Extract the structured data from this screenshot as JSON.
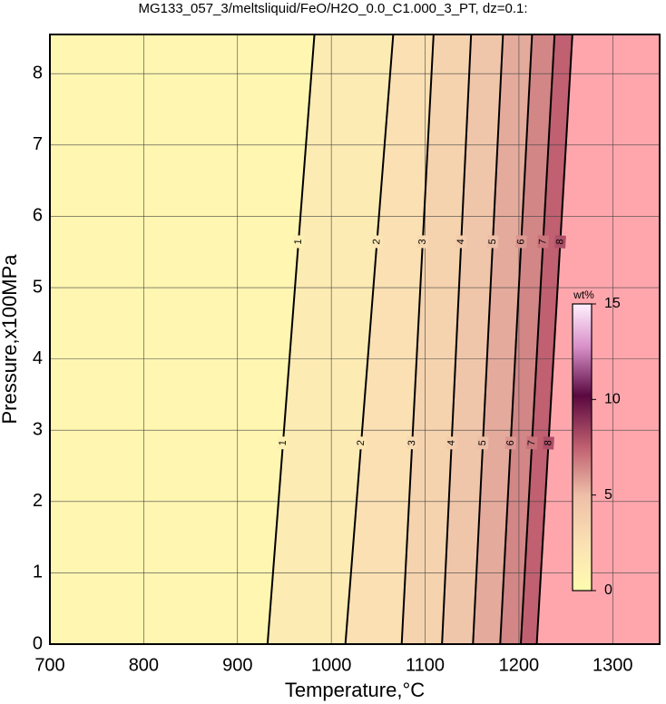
{
  "chart_data": {
    "type": "contour",
    "title": "MG133_057_3/meltsliquid/FeO/H2O_0.0_C1.000_3_PT, dz=0.1:",
    "x_label": "Temperature,°C",
    "y_label": "Pressure,x100MPa",
    "xlim": [
      700,
      1350
    ],
    "ylim": [
      0,
      8.55
    ],
    "xticks": [
      700,
      800,
      900,
      1000,
      1100,
      1200,
      1300
    ],
    "yticks": [
      0,
      1,
      2,
      3,
      4,
      5,
      6,
      7,
      8
    ],
    "grid": true,
    "contours": [
      {
        "level": 1,
        "x": [
          932,
          982
        ],
        "y": [
          0,
          8.55
        ]
      },
      {
        "level": 2,
        "x": [
          1015,
          1066
        ],
        "y": [
          0,
          8.55
        ]
      },
      {
        "level": 3,
        "x": [
          1075,
          1109
        ],
        "y": [
          0,
          8.55
        ]
      },
      {
        "level": 4,
        "x": [
          1118,
          1149
        ],
        "y": [
          0,
          8.55
        ]
      },
      {
        "level": 5,
        "x": [
          1151,
          1183
        ],
        "y": [
          0,
          8.55
        ]
      },
      {
        "level": 6,
        "x": [
          1180,
          1214
        ],
        "y": [
          0,
          8.55
        ]
      },
      {
        "level": 7,
        "x": [
          1202,
          1238
        ],
        "y": [
          0,
          8.55
        ]
      },
      {
        "level": 8,
        "x": [
          1219,
          1257
        ],
        "y": [
          0,
          8.55
        ]
      }
    ],
    "colorbar": {
      "label": "wt%",
      "clim": [
        0,
        15
      ],
      "ticks": [
        0,
        5,
        10,
        15
      ]
    }
  }
}
